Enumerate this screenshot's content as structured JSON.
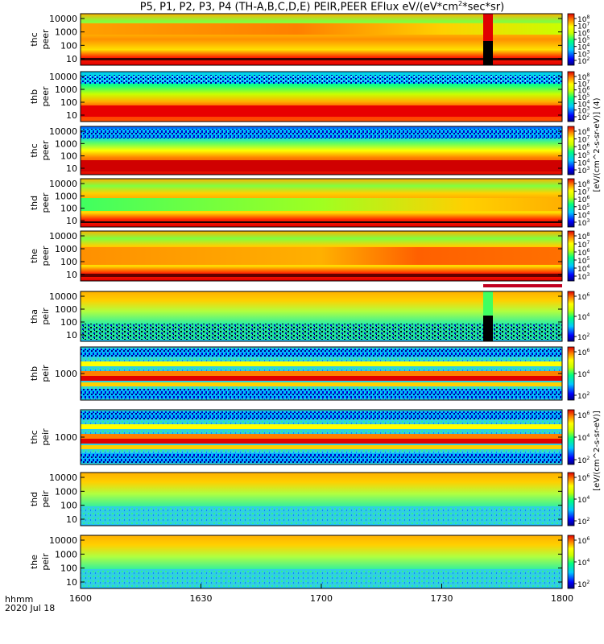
{
  "title": {
    "prefix": "P5, P1, P2, P3, P4 (TH-A,B,C,D,E) PEIR,PEER EFlux eV/(eV*cm",
    "exponent": "2",
    "suffix": "*sec*sr)"
  },
  "footer": {
    "hhmm": "hhmm",
    "date": "2020 Jul 18"
  },
  "chart_data": {
    "type": "heatmap",
    "x_ticks": [
      "1600",
      "1630",
      "1700",
      "1730",
      "1800"
    ],
    "x_range_minutes": [
      0,
      120
    ],
    "panels": [
      {
        "label1": "thc",
        "label2": "peer",
        "yticks": [
          "10000",
          "1000",
          "100",
          "10"
        ],
        "cbar_exps": [
          "8",
          "7",
          "6",
          "5",
          "4",
          "3",
          "2"
        ],
        "variant": "peer_c"
      },
      {
        "label1": "thb",
        "label2": "peer",
        "yticks": [
          "10000",
          "1000",
          "100",
          "10"
        ],
        "cbar_exps": [
          "8",
          "7",
          "6",
          "5",
          "4",
          "3",
          "2"
        ],
        "variant": "peer_b"
      },
      {
        "label1": "thc",
        "label2": "peer",
        "yticks": [
          "10000",
          "1000",
          "100",
          "10"
        ],
        "cbar_exps": [
          "8",
          "7",
          "6",
          "5",
          "4",
          "3"
        ],
        "variant": "peer_c2"
      },
      {
        "label1": "thd",
        "label2": "peer",
        "yticks": [
          "10000",
          "1000",
          "100",
          "10"
        ],
        "cbar_exps": [
          "8",
          "7",
          "6",
          "5",
          "4",
          "3"
        ],
        "variant": "peer_d"
      },
      {
        "label1": "the",
        "label2": "peer",
        "yticks": [
          "10000",
          "1000",
          "100",
          "10"
        ],
        "cbar_exps": [
          "8",
          "7",
          "6",
          "5",
          "4",
          "3"
        ],
        "variant": "peer_e"
      },
      {
        "label1": "tha",
        "label2": "peir",
        "yticks": [
          "10000",
          "1000",
          "100",
          "10"
        ],
        "cbar_exps": [
          "6",
          "4",
          "2"
        ],
        "variant": "peir_a"
      },
      {
        "label1": "thb",
        "label2": "peir",
        "yticks": [
          "1000"
        ],
        "cbar_exps": [
          "6",
          "4",
          "2"
        ],
        "variant": "peir_b"
      },
      {
        "label1": "thc",
        "label2": "peir",
        "yticks": [
          "1000"
        ],
        "cbar_exps": [
          "6",
          "4",
          "2"
        ],
        "variant": "peir_c"
      },
      {
        "label1": "thd",
        "label2": "peir",
        "yticks": [
          "10000",
          "1000",
          "100",
          "10"
        ],
        "cbar_exps": [
          "6",
          "4",
          "2"
        ],
        "variant": "peir_d"
      },
      {
        "label1": "the",
        "label2": "peir",
        "yticks": [
          "10000",
          "1000",
          "100",
          "10"
        ],
        "cbar_exps": [
          "6",
          "4",
          "2"
        ],
        "variant": "peir_e"
      }
    ],
    "colorbar_units_upper": "[eV/(cm^2-s-sr-eV)] (4)",
    "colorbar_units_lower": "[eV/(cm^2-s-sr-eV)]"
  }
}
